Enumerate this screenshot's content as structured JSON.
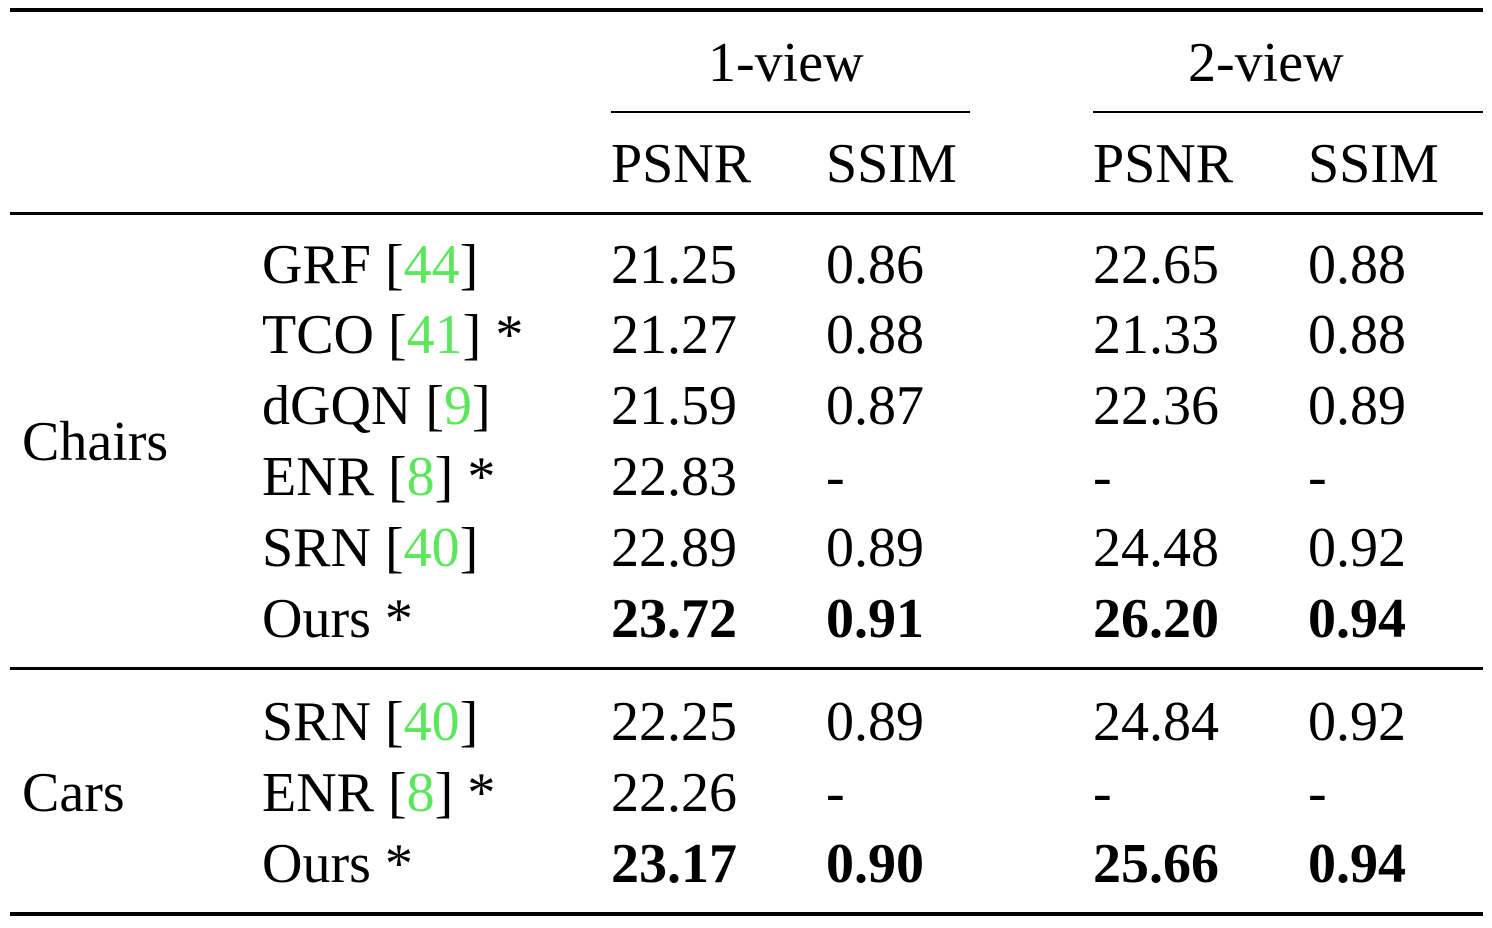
{
  "header": {
    "groups": [
      "1-view",
      "2-view"
    ],
    "metrics": [
      "PSNR",
      "SSIM",
      "PSNR",
      "SSIM"
    ]
  },
  "sections": [
    {
      "category": "Chairs",
      "rows": [
        {
          "method": "GRF",
          "ref": "44",
          "star": "",
          "values": [
            "21.25",
            "0.86",
            "22.65",
            "0.88"
          ],
          "bold": false
        },
        {
          "method": "TCO",
          "ref": "41",
          "star": "*",
          "values": [
            "21.27",
            "0.88",
            "21.33",
            "0.88"
          ],
          "bold": false
        },
        {
          "method": "dGQN",
          "ref": "9",
          "star": "",
          "values": [
            "21.59",
            "0.87",
            "22.36",
            "0.89"
          ],
          "bold": false
        },
        {
          "method": "ENR",
          "ref": "8",
          "star": "*",
          "values": [
            "22.83",
            "-",
            "-",
            "-"
          ],
          "bold": false
        },
        {
          "method": "SRN",
          "ref": "40",
          "star": "",
          "values": [
            "22.89",
            "0.89",
            "24.48",
            "0.92"
          ],
          "bold": false
        },
        {
          "method": "Ours",
          "ref": "",
          "star": "*",
          "values": [
            "23.72",
            "0.91",
            "26.20",
            "0.94"
          ],
          "bold": true
        }
      ]
    },
    {
      "category": "Cars",
      "rows": [
        {
          "method": "SRN",
          "ref": "40",
          "star": "",
          "values": [
            "22.25",
            "0.89",
            "24.84",
            "0.92"
          ],
          "bold": false
        },
        {
          "method": "ENR",
          "ref": "8",
          "star": "*",
          "values": [
            "22.26",
            "-",
            "-",
            "-"
          ],
          "bold": false
        },
        {
          "method": "Ours",
          "ref": "",
          "star": "*",
          "values": [
            "23.17",
            "0.90",
            "25.66",
            "0.94"
          ],
          "bold": true
        }
      ]
    }
  ]
}
